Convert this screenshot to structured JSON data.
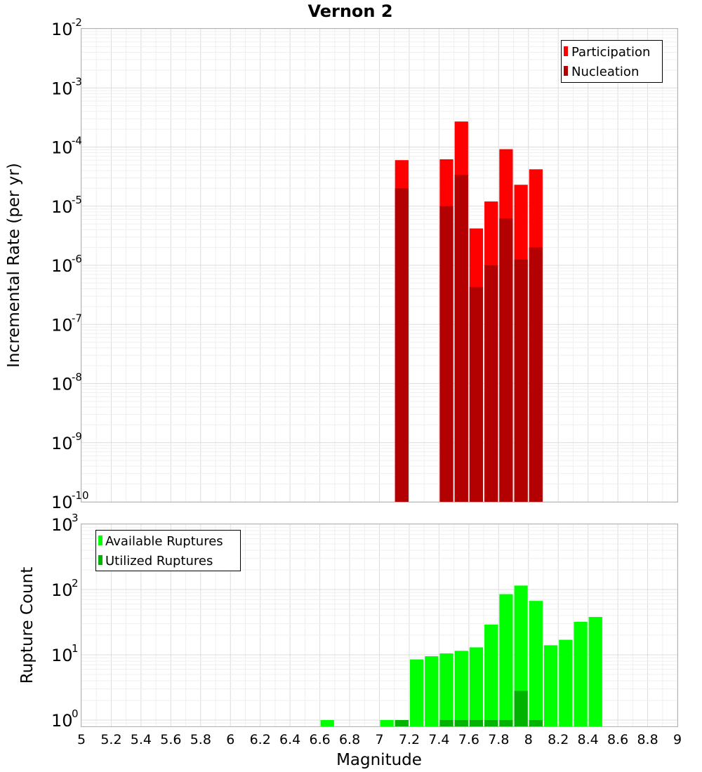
{
  "chart_data": [
    {
      "type": "bar",
      "title": "Vernon 2",
      "xlabel": "",
      "ylabel": "Incremental Rate (per yr)",
      "yscale": "log",
      "ylim": [
        1e-10,
        0.01
      ],
      "ytick_base": "10",
      "ytick_exponents": [
        "-10",
        "-9",
        "-8",
        "-7",
        "-6",
        "-5",
        "-4",
        "-3",
        "-2"
      ],
      "xlim": [
        5,
        9
      ],
      "bar_width": 0.1,
      "legend_position": "top-right",
      "series": [
        {
          "name": "Participation",
          "color": "#ff0000",
          "x": [
            7.15,
            7.45,
            7.55,
            7.65,
            7.75,
            7.85,
            7.95,
            8.05
          ],
          "values": [
            6e-05,
            6.2e-05,
            0.00027,
            4.2e-06,
            1.2e-05,
            9.2e-05,
            2.3e-05,
            4.2e-05
          ]
        },
        {
          "name": "Nucleation",
          "color": "#b30000",
          "x": [
            7.15,
            7.45,
            7.55,
            7.65,
            7.75,
            7.85,
            7.95,
            8.05
          ],
          "values": [
            2e-05,
            1e-05,
            3.4e-05,
            4.3e-07,
            1e-06,
            6.2e-06,
            1.25e-06,
            2e-06
          ]
        }
      ]
    },
    {
      "type": "bar",
      "title": "",
      "xlabel": "Magnitude",
      "ylabel": "Rupture Count",
      "yscale": "log",
      "ylim": [
        0.8,
        1000
      ],
      "ytick_base": "10",
      "ytick_exponents": [
        "0",
        "1",
        "2",
        "3"
      ],
      "xlim": [
        5,
        9
      ],
      "xticks": [
        "5",
        "5.2",
        "5.4",
        "5.6",
        "5.8",
        "6",
        "6.2",
        "6.4",
        "6.6",
        "6.8",
        "7",
        "7.2",
        "7.4",
        "7.6",
        "7.8",
        "8",
        "8.2",
        "8.4",
        "8.6",
        "8.8",
        "9"
      ],
      "bar_width": 0.1,
      "legend_position": "top-left",
      "series": [
        {
          "name": "Available Ruptures",
          "color": "#00ff00",
          "x": [
            6.65,
            7.05,
            7.15,
            7.25,
            7.35,
            7.45,
            7.55,
            7.65,
            7.75,
            7.85,
            7.95,
            8.05,
            8.15,
            8.25,
            8.35,
            8.45
          ],
          "values": [
            1,
            1,
            1,
            8.5,
            9.5,
            10.5,
            11.5,
            13,
            29,
            85,
            115,
            67,
            14,
            17,
            32,
            38
          ]
        },
        {
          "name": "Utilized Ruptures",
          "color": "#00b300",
          "x": [
            7.15,
            7.45,
            7.55,
            7.65,
            7.75,
            7.85,
            7.95,
            8.05
          ],
          "values": [
            1,
            1,
            1,
            1,
            1,
            1,
            2.8,
            1
          ]
        }
      ]
    }
  ]
}
